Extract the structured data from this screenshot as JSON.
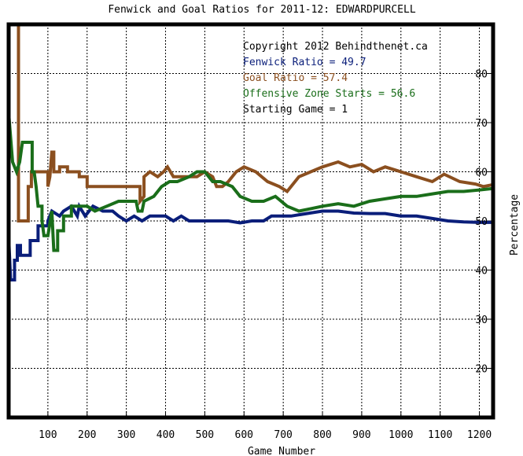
{
  "chart_data": {
    "type": "line",
    "title": "Fenwick and Goal Ratios for 2011-12: EDWARDPURCELL",
    "xlabel": "Game Number",
    "ylabel": "Percentage",
    "xlim": [
      0,
      1235
    ],
    "ylim": [
      10,
      90
    ],
    "x_ticks": [
      100,
      200,
      300,
      400,
      500,
      600,
      700,
      800,
      900,
      1000,
      1100,
      1200
    ],
    "y_ticks": [
      20,
      30,
      40,
      50,
      60,
      70,
      80
    ],
    "grid": true,
    "annotations": [
      {
        "text": "Copyright 2012 Behindthenet.ca",
        "color": "#000000"
      },
      {
        "text": "Fenwick Ratio = 49.7",
        "color": "#0a1e7a"
      },
      {
        "text": "Goal Ratio = 57.4",
        "color": "#8b4f1f"
      },
      {
        "text": "Offensive Zone Starts = 56.6",
        "color": "#1a6e1a"
      },
      {
        "text": "Starting Game = 1",
        "color": "#000000"
      }
    ],
    "series": [
      {
        "name": "Fenwick Ratio",
        "color": "#0a1e7a",
        "points": [
          [
            1,
            45
          ],
          [
            5,
            38
          ],
          [
            15,
            38
          ],
          [
            15,
            42
          ],
          [
            22,
            42
          ],
          [
            22,
            45
          ],
          [
            30,
            45
          ],
          [
            30,
            43
          ],
          [
            55,
            43
          ],
          [
            55,
            46
          ],
          [
            75,
            46
          ],
          [
            75,
            49
          ],
          [
            100,
            49
          ],
          [
            100,
            50
          ],
          [
            110,
            52
          ],
          [
            130,
            51
          ],
          [
            140,
            52
          ],
          [
            160,
            53
          ],
          [
            175,
            51
          ],
          [
            180,
            53
          ],
          [
            195,
            51
          ],
          [
            215,
            53
          ],
          [
            240,
            52
          ],
          [
            265,
            52
          ],
          [
            280,
            51
          ],
          [
            300,
            50
          ],
          [
            320,
            51
          ],
          [
            340,
            50
          ],
          [
            360,
            51
          ],
          [
            380,
            51
          ],
          [
            400,
            51
          ],
          [
            420,
            50
          ],
          [
            440,
            51
          ],
          [
            460,
            50
          ],
          [
            480,
            50
          ],
          [
            500,
            50
          ],
          [
            530,
            50
          ],
          [
            560,
            50
          ],
          [
            590,
            49.6
          ],
          [
            620,
            50
          ],
          [
            650,
            50
          ],
          [
            670,
            51
          ],
          [
            700,
            51
          ],
          [
            720,
            51
          ],
          [
            760,
            51.5
          ],
          [
            800,
            52
          ],
          [
            840,
            52
          ],
          [
            880,
            51.6
          ],
          [
            920,
            51.5
          ],
          [
            960,
            51.5
          ],
          [
            1000,
            51
          ],
          [
            1040,
            51
          ],
          [
            1080,
            50.5
          ],
          [
            1120,
            50
          ],
          [
            1160,
            49.8
          ],
          [
            1200,
            49.7
          ],
          [
            1235,
            49.7
          ]
        ]
      },
      {
        "name": "Goal Ratio",
        "color": "#8b4f1f",
        "points": [
          [
            25,
            92
          ],
          [
            25,
            50
          ],
          [
            50,
            50
          ],
          [
            50,
            57
          ],
          [
            58,
            57
          ],
          [
            58,
            60
          ],
          [
            100,
            60
          ],
          [
            100,
            57
          ],
          [
            105,
            59
          ],
          [
            110,
            64
          ],
          [
            115,
            64
          ],
          [
            115,
            60
          ],
          [
            130,
            60
          ],
          [
            130,
            61
          ],
          [
            150,
            61
          ],
          [
            150,
            60
          ],
          [
            180,
            60
          ],
          [
            180,
            59
          ],
          [
            200,
            59
          ],
          [
            200,
            57
          ],
          [
            335,
            57
          ],
          [
            335,
            54
          ],
          [
            345,
            55
          ],
          [
            345,
            59
          ],
          [
            360,
            60
          ],
          [
            380,
            59
          ],
          [
            395,
            60
          ],
          [
            405,
            61
          ],
          [
            420,
            59
          ],
          [
            450,
            59
          ],
          [
            480,
            59
          ],
          [
            500,
            60
          ],
          [
            520,
            59
          ],
          [
            530,
            57
          ],
          [
            545,
            57
          ],
          [
            560,
            58
          ],
          [
            580,
            60
          ],
          [
            600,
            61
          ],
          [
            630,
            60
          ],
          [
            660,
            58
          ],
          [
            690,
            57
          ],
          [
            710,
            56
          ],
          [
            740,
            59
          ],
          [
            770,
            60
          ],
          [
            800,
            61
          ],
          [
            840,
            62
          ],
          [
            870,
            61
          ],
          [
            900,
            61.5
          ],
          [
            930,
            60
          ],
          [
            960,
            61
          ],
          [
            1000,
            60
          ],
          [
            1040,
            59
          ],
          [
            1080,
            58
          ],
          [
            1110,
            59.5
          ],
          [
            1150,
            58
          ],
          [
            1190,
            57.5
          ],
          [
            1210,
            57
          ],
          [
            1235,
            57.4
          ]
        ]
      },
      {
        "name": "Offensive Zone Starts",
        "color": "#1a6e1a",
        "points": [
          [
            1,
            71
          ],
          [
            10,
            62
          ],
          [
            20,
            60
          ],
          [
            28,
            62
          ],
          [
            35,
            66
          ],
          [
            60,
            66
          ],
          [
            60,
            60
          ],
          [
            65,
            60
          ],
          [
            70,
            57
          ],
          [
            75,
            53
          ],
          [
            85,
            53
          ],
          [
            85,
            50
          ],
          [
            90,
            47
          ],
          [
            100,
            47
          ],
          [
            110,
            52
          ],
          [
            115,
            44
          ],
          [
            125,
            44
          ],
          [
            125,
            48
          ],
          [
            140,
            48
          ],
          [
            140,
            51
          ],
          [
            160,
            51
          ],
          [
            160,
            53
          ],
          [
            200,
            53
          ],
          [
            220,
            52
          ],
          [
            250,
            53
          ],
          [
            280,
            54
          ],
          [
            300,
            54
          ],
          [
            325,
            54
          ],
          [
            330,
            52
          ],
          [
            340,
            52
          ],
          [
            345,
            54
          ],
          [
            370,
            55
          ],
          [
            390,
            57
          ],
          [
            410,
            58
          ],
          [
            430,
            58
          ],
          [
            460,
            59
          ],
          [
            480,
            60
          ],
          [
            500,
            60
          ],
          [
            520,
            58
          ],
          [
            540,
            58
          ],
          [
            570,
            57
          ],
          [
            590,
            55
          ],
          [
            620,
            54
          ],
          [
            650,
            54
          ],
          [
            680,
            55
          ],
          [
            710,
            53
          ],
          [
            740,
            52
          ],
          [
            770,
            52.5
          ],
          [
            800,
            53
          ],
          [
            840,
            53.5
          ],
          [
            880,
            53
          ],
          [
            920,
            54
          ],
          [
            960,
            54.5
          ],
          [
            1000,
            55
          ],
          [
            1040,
            55
          ],
          [
            1080,
            55.5
          ],
          [
            1120,
            56
          ],
          [
            1160,
            56
          ],
          [
            1200,
            56.3
          ],
          [
            1235,
            56.6
          ]
        ]
      }
    ]
  }
}
